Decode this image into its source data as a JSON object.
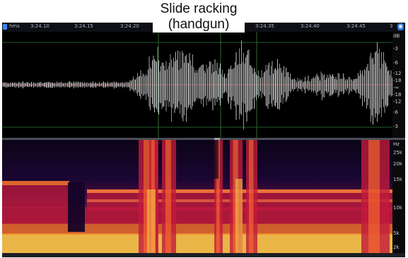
{
  "caption": {
    "line1": "Slide racking",
    "line2": "(handgun)"
  },
  "ruler": {
    "unit_label": "hms",
    "ticks": [
      "3:24.10",
      "3:24.15",
      "3:24.20",
      "3:24.35",
      "3:24.40",
      "3:24.45",
      "3"
    ]
  },
  "db_scale": [
    "dB",
    "-3",
    "-6",
    "-12",
    "-18",
    "-∞",
    "-18",
    "-12",
    "-6",
    "-3"
  ],
  "hz_scale": [
    "Hz",
    "25k",
    "20k",
    "15k",
    "10k",
    "5k",
    "2k",
    "1k"
  ],
  "colors": {
    "waveform": "#ffffff",
    "spectrogram_low": "#1a0633",
    "spectrogram_mid": "#c21a3c",
    "spectrogram_high": "#ffd24a",
    "selection_accent": "#3a86ff"
  },
  "icons": {
    "ruler_start": "playhead-marker-icon",
    "ruler_end": "settings-icon"
  }
}
